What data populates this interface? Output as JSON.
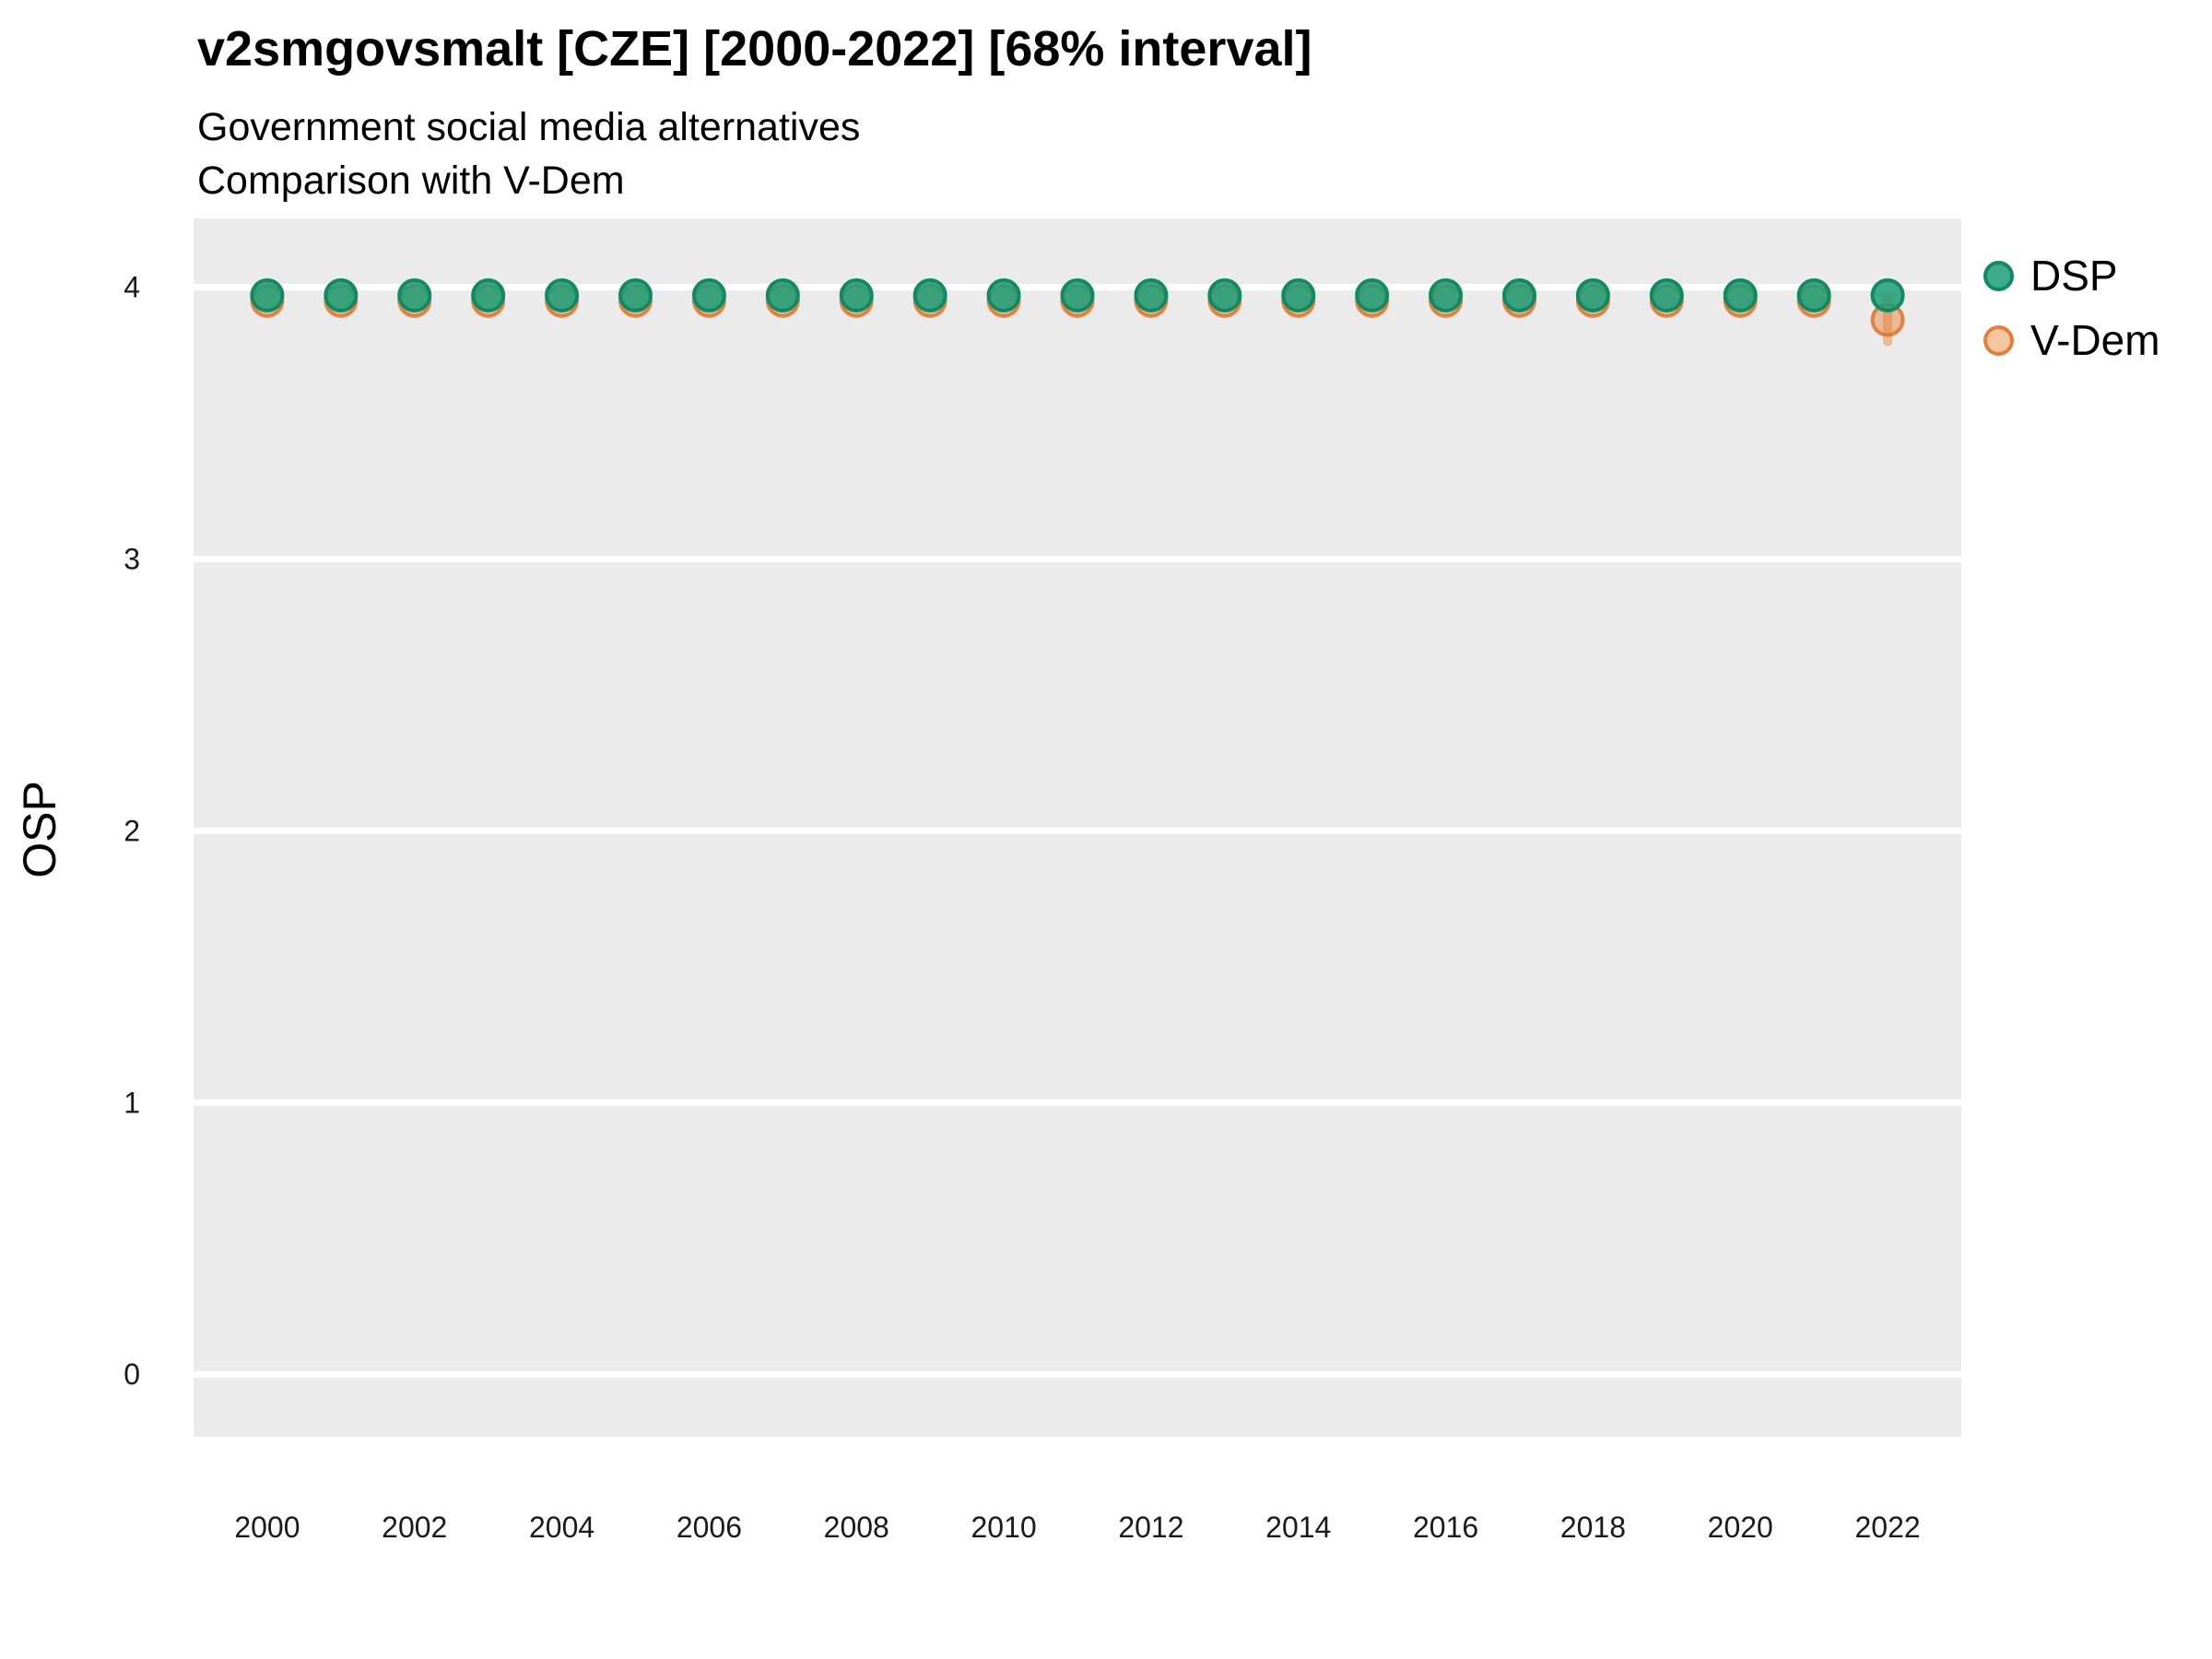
{
  "title": "v2smgovsmalt [CZE] [2000-2022] [68% interval]",
  "subtitle_line1": "Government social media alternatives",
  "subtitle_line2": "Comparison with V-Dem",
  "y_axis_title": "OSP",
  "legend": {
    "items": [
      {
        "label": "DSP",
        "fill": "rgba(27,158,119,0.85)",
        "stroke": "#0F8A63"
      },
      {
        "label": "V-Dem",
        "fill": "rgba(230,126,47,0.45)",
        "stroke": "rgba(222,110,32,0.8)"
      }
    ]
  },
  "chart_data": {
    "type": "scatter",
    "title": "v2smgovsmalt [CZE] [2000-2022] [68% interval]",
    "subtitle": [
      "Government social media alternatives",
      "Comparison with V-Dem"
    ],
    "xlabel": "",
    "ylabel": "OSP",
    "x": [
      2000,
      2001,
      2002,
      2003,
      2004,
      2005,
      2006,
      2007,
      2008,
      2009,
      2010,
      2011,
      2012,
      2013,
      2014,
      2015,
      2016,
      2017,
      2018,
      2019,
      2020,
      2021,
      2022
    ],
    "series": [
      {
        "name": "V-Dem",
        "marker_fill": "rgba(230,126,47,0.45)",
        "marker_stroke": "rgba(222,110,32,0.8)",
        "values": [
          3.95,
          3.95,
          3.95,
          3.95,
          3.95,
          3.95,
          3.95,
          3.95,
          3.95,
          3.95,
          3.95,
          3.95,
          3.95,
          3.95,
          3.95,
          3.95,
          3.95,
          3.95,
          3.95,
          3.95,
          3.95,
          3.95,
          3.88
        ],
        "intervals": [
          {
            "x": 2022,
            "low": 3.8,
            "high": 3.96
          }
        ]
      },
      {
        "name": "DSP",
        "marker_fill": "rgba(27,158,119,0.85)",
        "marker_stroke": "#0F8A63",
        "values": [
          3.97,
          3.97,
          3.97,
          3.97,
          3.97,
          3.97,
          3.97,
          3.97,
          3.97,
          3.97,
          3.97,
          3.97,
          3.97,
          3.97,
          3.97,
          3.97,
          3.97,
          3.97,
          3.97,
          3.97,
          3.97,
          3.97,
          3.97
        ],
        "intervals": []
      }
    ],
    "xlim": [
      1999,
      2023
    ],
    "ylim": [
      -0.23,
      4.253
    ],
    "xticks": [
      2000,
      2002,
      2004,
      2006,
      2008,
      2010,
      2012,
      2014,
      2016,
      2018,
      2020,
      2022
    ],
    "yticks": [
      0,
      1,
      2,
      3,
      4
    ],
    "grid": "horizontal-major-only",
    "legend_position": "right-top",
    "panel_bg": "#EBEBEB",
    "grid_color": "#FFFFFF",
    "tick_label_color": "#1a1a1a"
  }
}
